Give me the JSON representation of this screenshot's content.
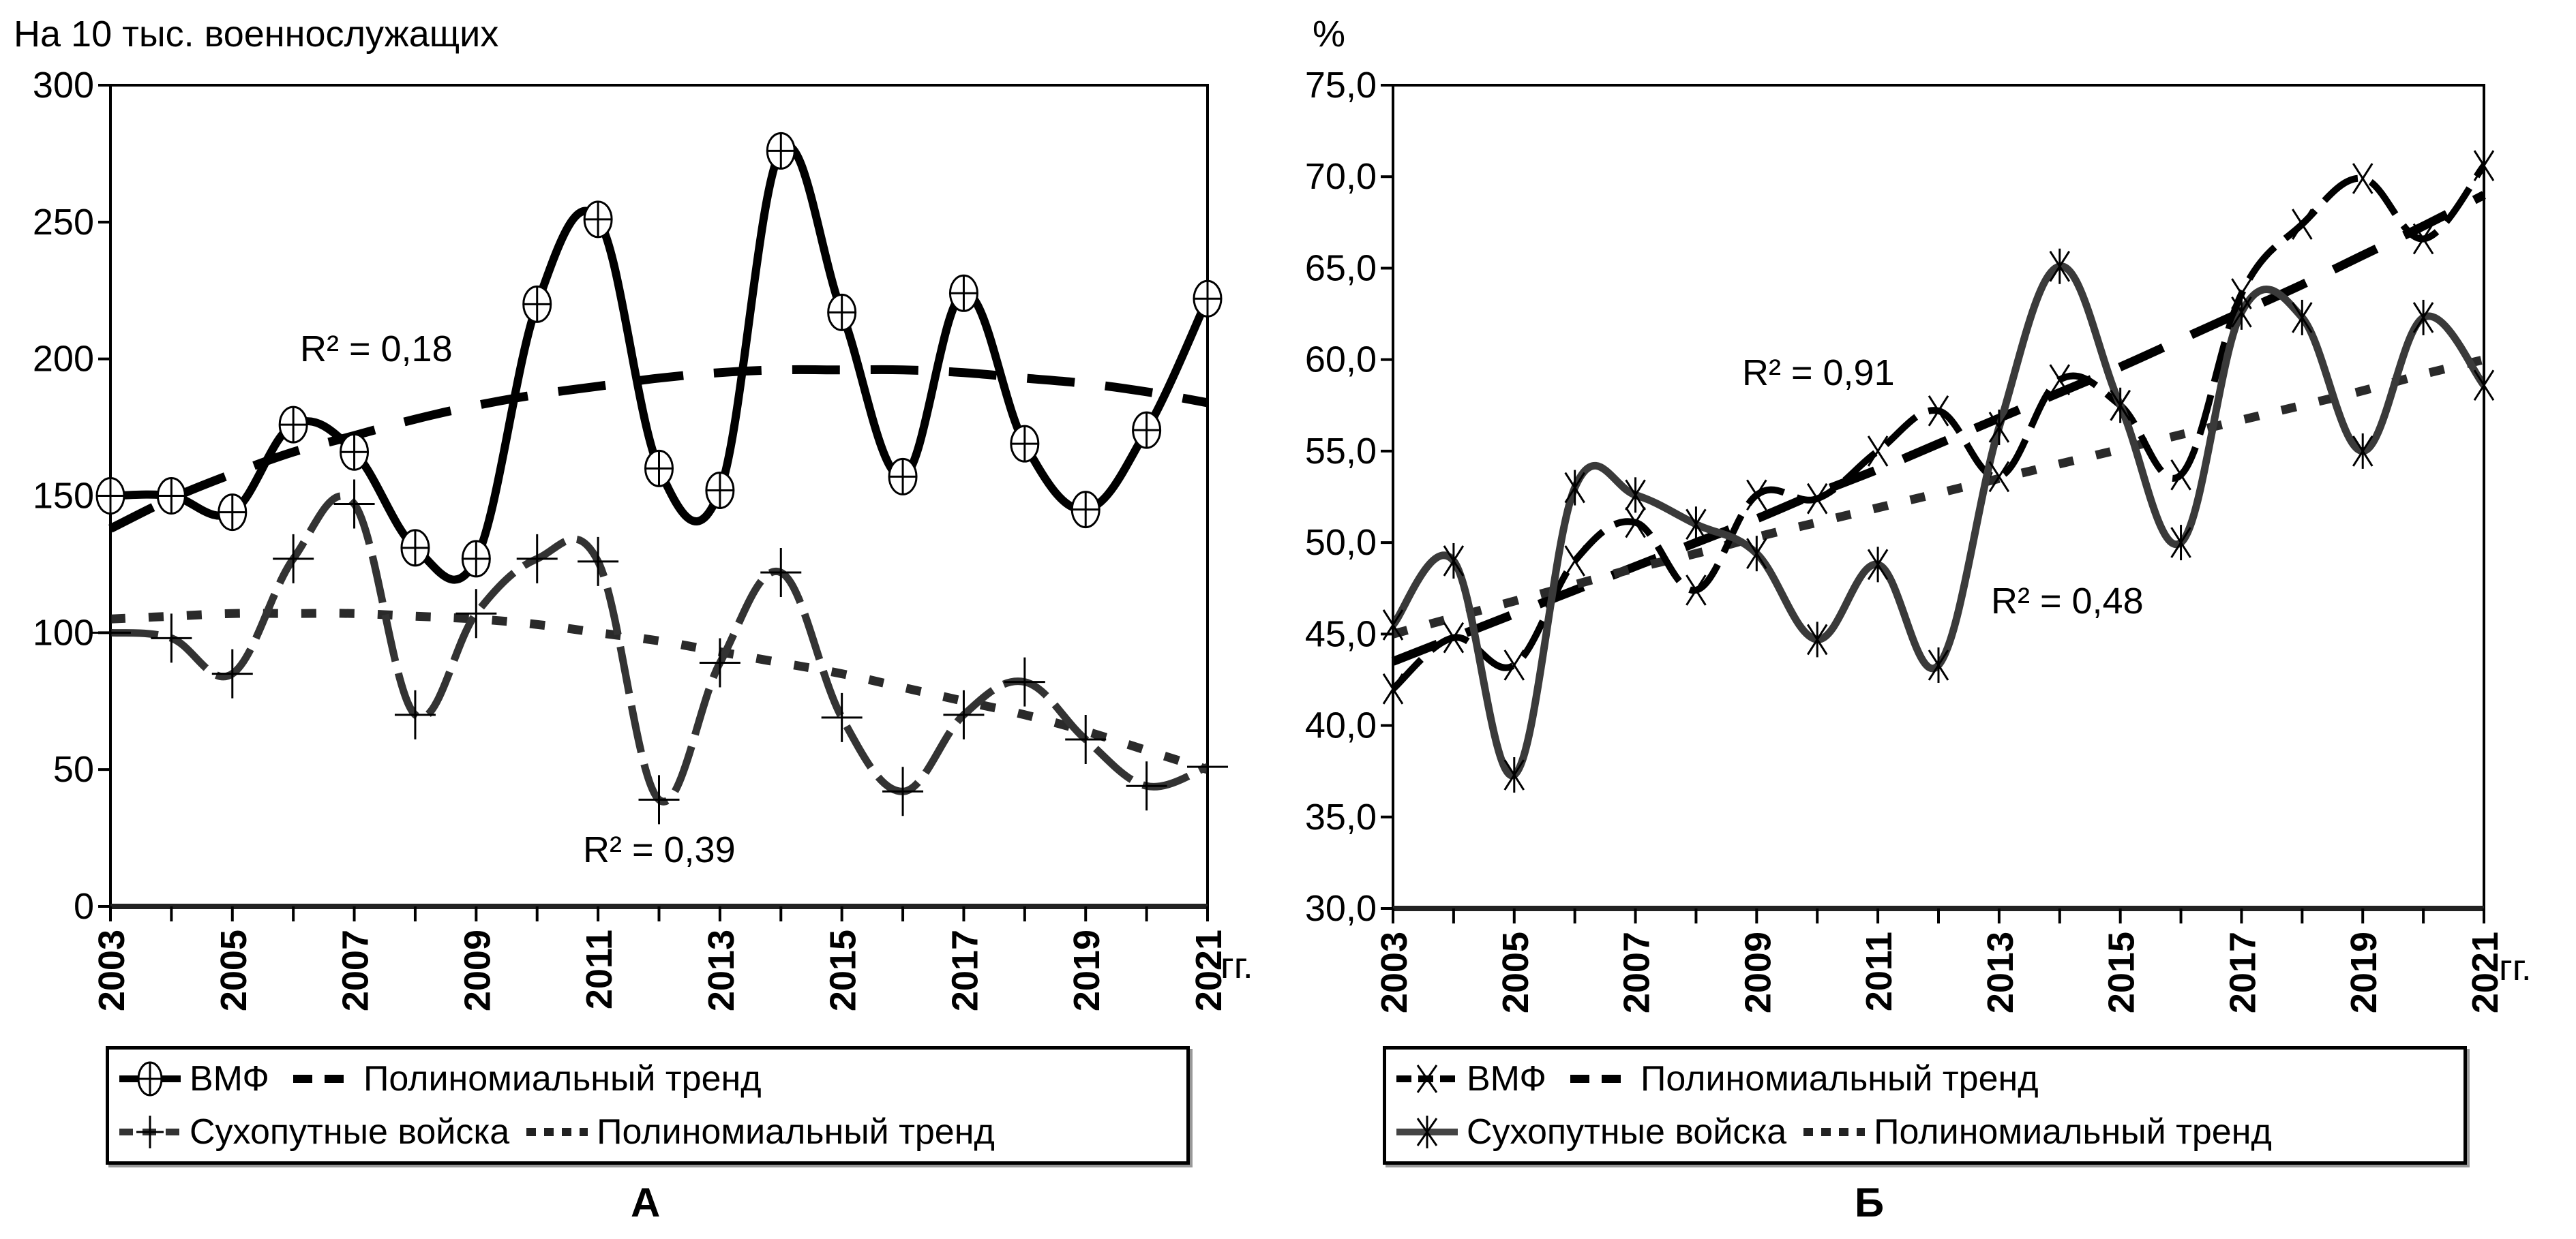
{
  "chart_data": [
    {
      "id": "A",
      "type": "line",
      "panel_label": "А",
      "ylabel": "На 10 тыс.  военнослужащих",
      "x_unit_label": "гг.",
      "ylim": [
        0,
        300
      ],
      "yticks": [
        0,
        50,
        100,
        150,
        200,
        250,
        300
      ],
      "ytick_labels": [
        "0",
        "50",
        "100",
        "150",
        "200",
        "250",
        "300"
      ],
      "x": [
        2003,
        2004,
        2005,
        2006,
        2007,
        2008,
        2009,
        2010,
        2011,
        2012,
        2013,
        2014,
        2015,
        2016,
        2017,
        2018,
        2019,
        2020,
        2021
      ],
      "xtick_labels": [
        "2003",
        "2005",
        "2007",
        "2009",
        "2011",
        "2013",
        "2015",
        "2017",
        "2019",
        "2021"
      ],
      "series": [
        {
          "name": "ВМФ",
          "marker": "circle-plus",
          "style": "solid",
          "values": [
            150,
            150,
            144,
            176,
            166,
            131,
            127,
            220,
            251,
            160,
            152,
            276,
            217,
            157,
            224,
            169,
            145,
            174,
            222
          ]
        },
        {
          "name": "Сухопутные войска",
          "marker": "plus",
          "style": "dash-gray",
          "values": [
            100,
            98,
            85,
            127,
            147,
            70,
            107,
            127,
            126,
            39,
            89,
            122,
            69,
            42,
            70,
            82,
            61,
            44,
            51
          ]
        }
      ],
      "trends": [
        {
          "name": "Полиномиальный тренд",
          "for": "ВМФ",
          "style": "long-dash",
          "r2_label": "R² = 0,18",
          "values": [
            138,
            149,
            158,
            166,
            172,
            178,
            183,
            187,
            190,
            193,
            195,
            196,
            196,
            196,
            195,
            193,
            191,
            188,
            184
          ]
        },
        {
          "name": "Полиномиальный тренд",
          "for": "Сухопутные войска",
          "style": "dotted",
          "r2_label": "R² = 0,39",
          "values": [
            105,
            106,
            107,
            107,
            107,
            106,
            105,
            103,
            100,
            97,
            93,
            89,
            85,
            80,
            75,
            70,
            64,
            57,
            50
          ]
        }
      ],
      "legend": [
        {
          "label": "ВМФ",
          "trend_label": "Полиномиальный тренд"
        },
        {
          "label": "Сухопутные войска",
          "trend_label": "Полиномиальный тренд"
        }
      ],
      "legend_position": "bottom"
    },
    {
      "id": "B",
      "type": "line",
      "panel_label": "Б",
      "ylabel": "%",
      "x_unit_label": "гг.",
      "ylim": [
        30,
        75
      ],
      "yticks": [
        30,
        35,
        40,
        45,
        50,
        55,
        60,
        65,
        70,
        75
      ],
      "ytick_labels": [
        "30,0",
        "35,0",
        "40,0",
        "45,0",
        "50,0",
        "55,0",
        "60,0",
        "65,0",
        "70,0",
        "75,0"
      ],
      "x": [
        2003,
        2004,
        2005,
        2006,
        2007,
        2008,
        2009,
        2010,
        2011,
        2012,
        2013,
        2014,
        2015,
        2016,
        2017,
        2018,
        2019,
        2020,
        2021
      ],
      "xtick_labels": [
        "2003",
        "2005",
        "2007",
        "2009",
        "2011",
        "2013",
        "2015",
        "2017",
        "2019",
        "2021"
      ],
      "series": [
        {
          "name": "ВМФ",
          "marker": "x",
          "style": "dash-black",
          "values": [
            42.0,
            44.8,
            43.3,
            49.0,
            51.1,
            47.4,
            52.6,
            52.4,
            55.0,
            57.2,
            53.6,
            58.9,
            57.5,
            53.7,
            63.6,
            67.4,
            69.9,
            66.6,
            70.6
          ]
        },
        {
          "name": "Сухопутные войска",
          "marker": "asterisk",
          "style": "solid-gray",
          "values": [
            45.5,
            49.0,
            37.3,
            53.0,
            52.6,
            51.0,
            49.4,
            44.7,
            48.8,
            43.3,
            56.3,
            65.1,
            57.5,
            50.0,
            62.6,
            62.3,
            55.0,
            62.3,
            58.6
          ]
        }
      ],
      "trends": [
        {
          "name": "Полиномиальный тренд",
          "for": "ВМФ",
          "style": "long-dash",
          "r2_label": "R² = 0,91",
          "values": [
            43.5,
            44.8,
            46.1,
            47.4,
            48.7,
            50.0,
            51.3,
            52.7,
            54.0,
            55.4,
            56.8,
            58.2,
            59.6,
            61.1,
            62.6,
            64.1,
            65.7,
            67.3,
            69.0
          ]
        },
        {
          "name": "Полиномиальный тренд",
          "for": "Сухопутные войска",
          "style": "dotted",
          "r2_label": "R² = 0,48",
          "values": [
            45.0,
            45.9,
            46.8,
            47.7,
            48.6,
            49.4,
            50.3,
            51.1,
            51.9,
            52.7,
            53.5,
            54.3,
            55.1,
            55.9,
            56.7,
            57.5,
            58.3,
            59.2,
            60.0
          ]
        }
      ],
      "legend": [
        {
          "label": "ВМФ",
          "trend_label": "Полиномиальный тренд"
        },
        {
          "label": "Сухопутные войска",
          "trend_label": "Полиномиальный тренд"
        }
      ],
      "legend_position": "bottom"
    }
  ]
}
